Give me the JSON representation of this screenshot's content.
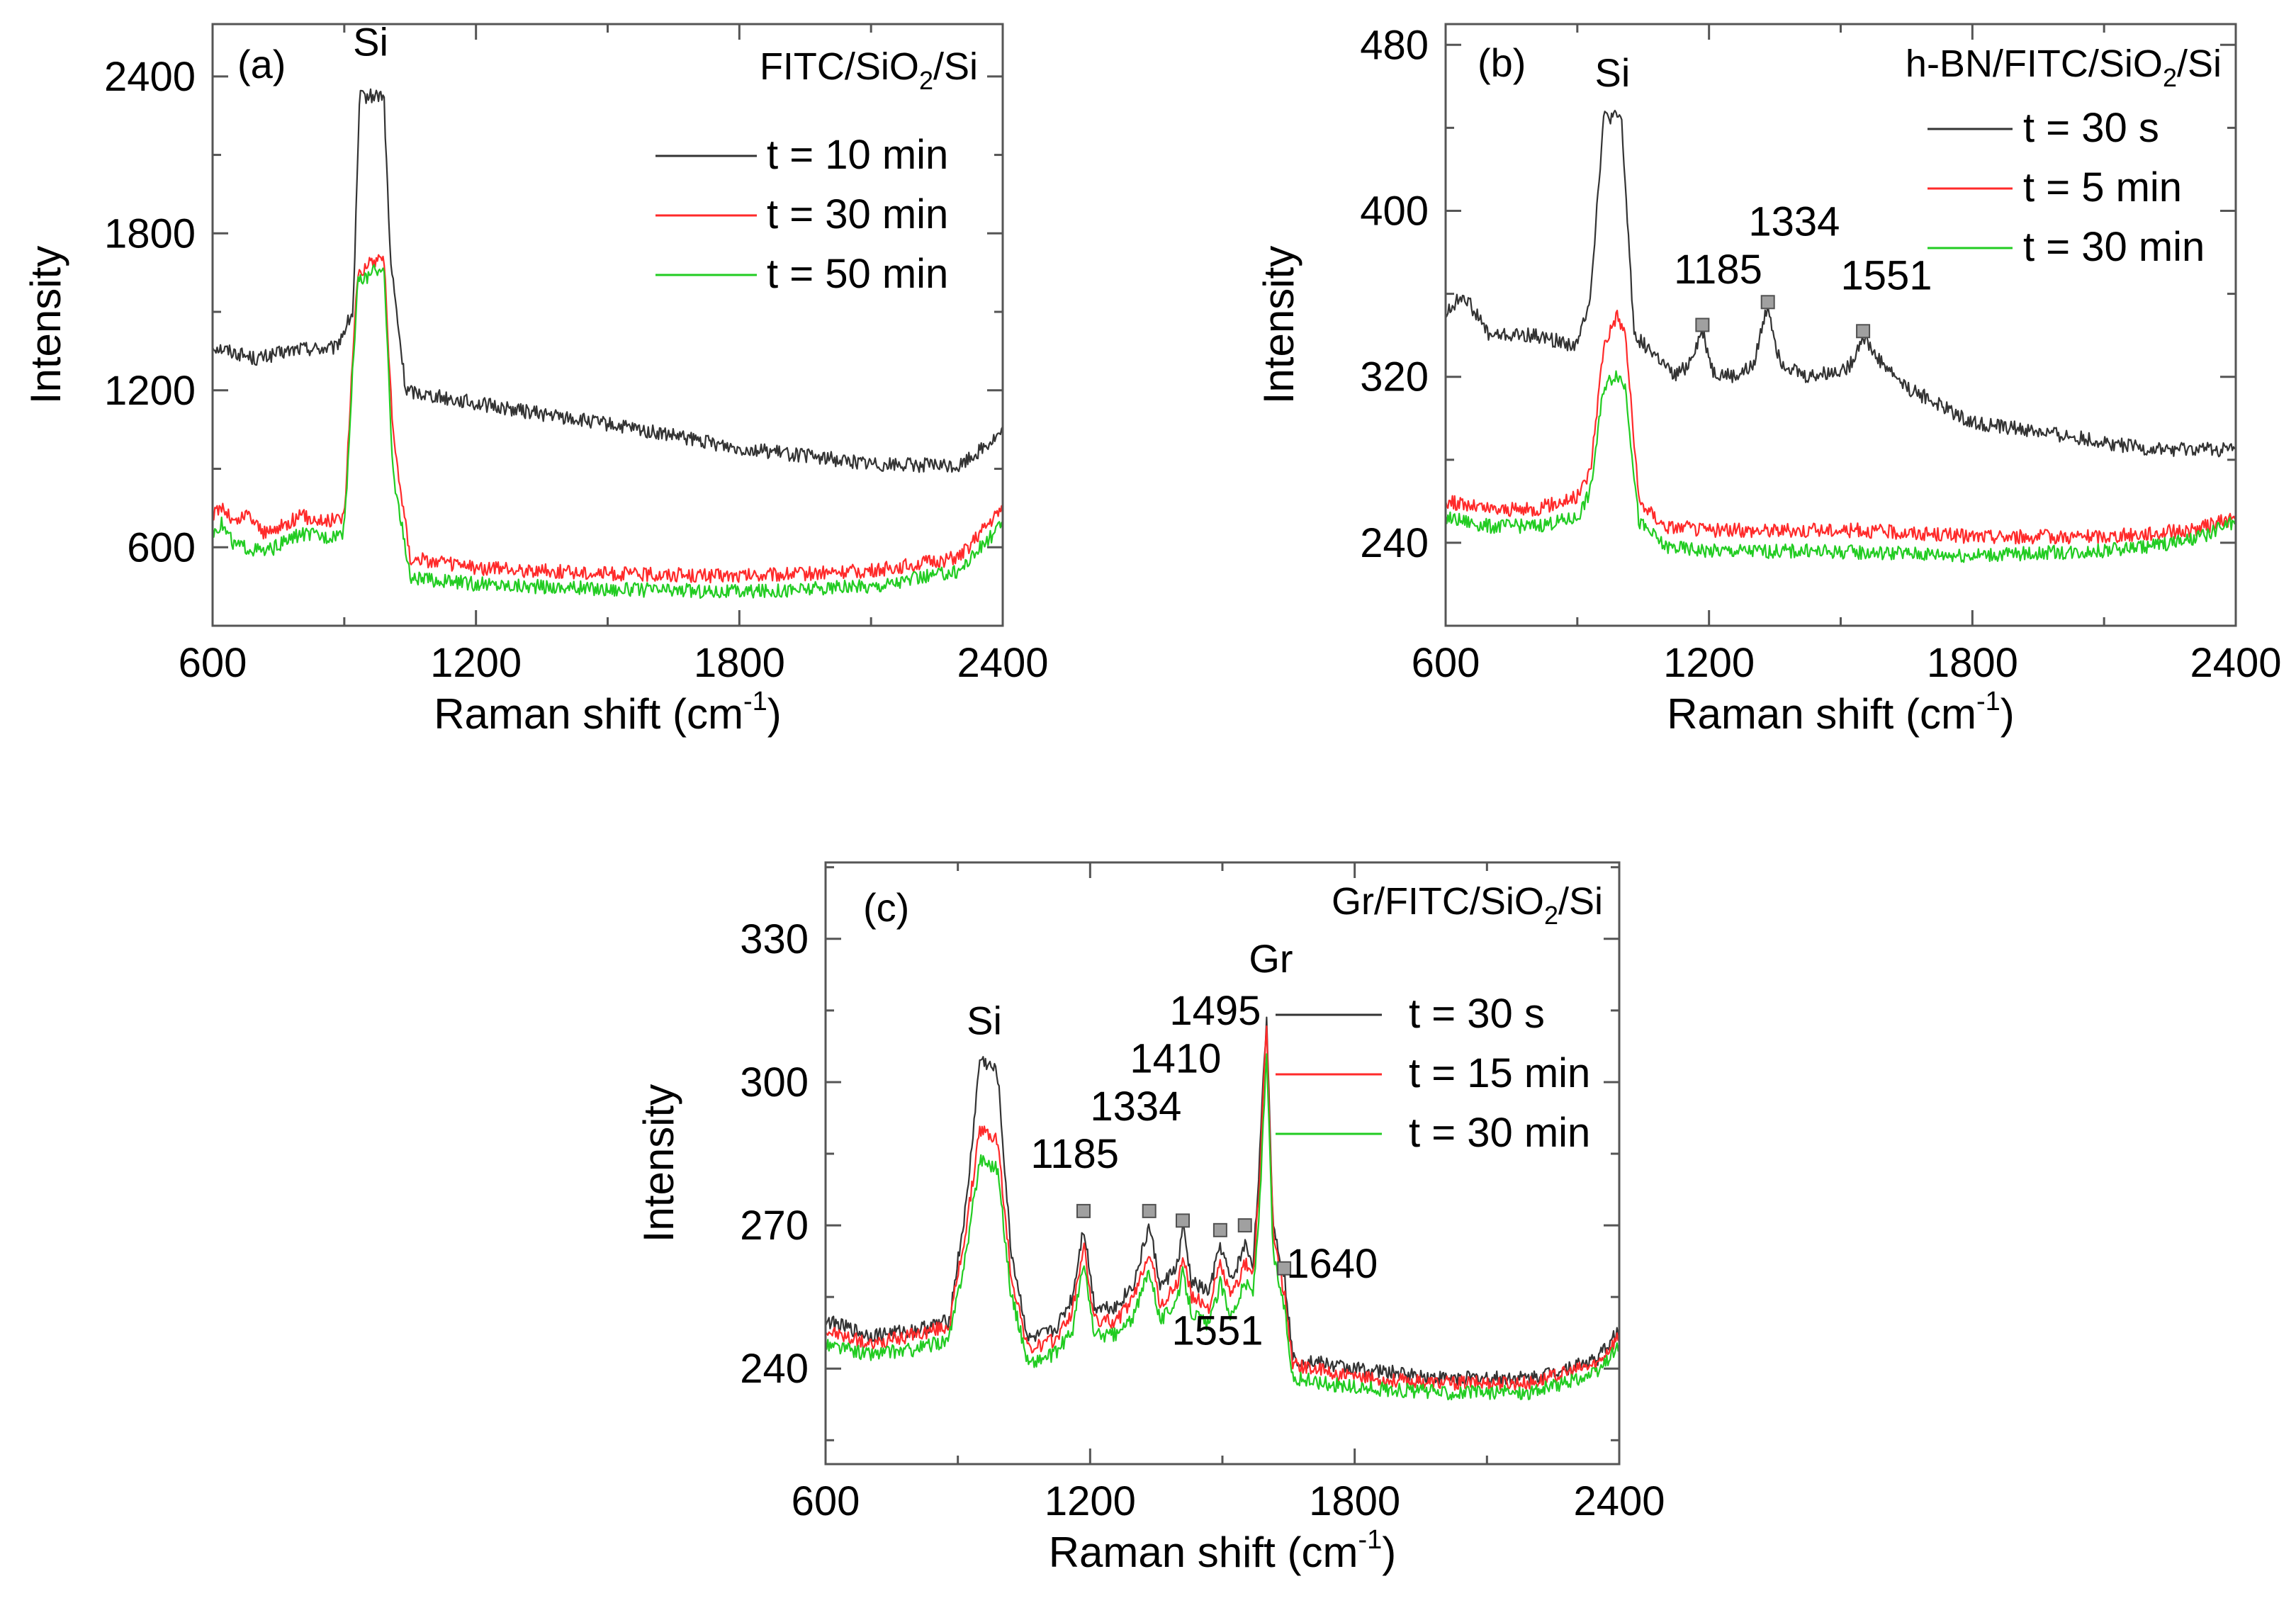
{
  "chart_data": [
    {
      "id": "a",
      "type": "line",
      "panel_label": "(a)",
      "sample": {
        "pre": "FITC/SiO",
        "sub": "2",
        "post": "/Si"
      },
      "xlabel": {
        "pre": "Raman shift (cm",
        "sup": "-1",
        "post": ")"
      },
      "ylabel": "Intensity",
      "xlim": [
        600,
        2400
      ],
      "ylim": [
        300,
        2600
      ],
      "xticks": [
        600,
        1200,
        1800,
        2400
      ],
      "yticks": [
        600,
        1200,
        1800,
        2400
      ],
      "annotations": [
        {
          "text": "Si",
          "x": 960,
          "y": 2480
        }
      ],
      "markers": [],
      "series": [
        {
          "name": "t = 10 min",
          "color": "#333333",
          "points": [
            [
              600,
              1370
            ],
            [
              700,
              1320
            ],
            [
              800,
              1360
            ],
            [
              880,
              1360
            ],
            [
              920,
              1500
            ],
            [
              935,
              2320
            ],
            [
              990,
              2330
            ],
            [
              1005,
              1700
            ],
            [
              1040,
              1200
            ],
            [
              1200,
              1150
            ],
            [
              1500,
              1070
            ],
            [
              1800,
              980
            ],
            [
              2100,
              920
            ],
            [
              2300,
              910
            ],
            [
              2400,
              1040
            ]
          ]
        },
        {
          "name": "t = 30 min",
          "color": "#ff2a2a",
          "points": [
            [
              600,
              720
            ],
            [
              620,
              760
            ],
            [
              650,
              690
            ],
            [
              680,
              730
            ],
            [
              720,
              650
            ],
            [
              800,
              720
            ],
            [
              860,
              700
            ],
            [
              900,
              720
            ],
            [
              930,
              1650
            ],
            [
              990,
              1720
            ],
            [
              1010,
              1050
            ],
            [
              1050,
              560
            ],
            [
              1200,
              520
            ],
            [
              1500,
              500
            ],
            [
              1800,
              490
            ],
            [
              2100,
              510
            ],
            [
              2300,
              560
            ],
            [
              2400,
              750
            ]
          ]
        },
        {
          "name": "t = 50 min",
          "color": "#22cc22",
          "points": [
            [
              600,
              660
            ],
            [
              620,
              690
            ],
            [
              650,
              610
            ],
            [
              720,
              580
            ],
            [
              800,
              650
            ],
            [
              860,
              640
            ],
            [
              900,
              660
            ],
            [
              930,
              1610
            ],
            [
              990,
              1680
            ],
            [
              1010,
              900
            ],
            [
              1050,
              480
            ],
            [
              1200,
              460
            ],
            [
              1500,
              440
            ],
            [
              1800,
              430
            ],
            [
              2100,
              450
            ],
            [
              2300,
              510
            ],
            [
              2400,
              690
            ]
          ]
        }
      ]
    },
    {
      "id": "b",
      "type": "line",
      "panel_label": "(b)",
      "sample": {
        "pre": "h-BN/FITC/SiO",
        "sub": "2",
        "post": "/Si"
      },
      "xlabel": {
        "pre": "Raman shift (cm",
        "sup": "-1",
        "post": ")"
      },
      "ylabel": "Intensity",
      "xlim": [
        600,
        2400
      ],
      "ylim": [
        200,
        490
      ],
      "xticks": [
        600,
        1200,
        1800,
        2400
      ],
      "yticks": [
        240,
        320,
        400,
        480
      ],
      "annotations": [
        {
          "text": "Si",
          "x": 980,
          "y": 460
        },
        {
          "text": "1185",
          "x": 1120,
          "y": 365
        },
        {
          "text": "1334",
          "x": 1290,
          "y": 388
        },
        {
          "text": "1551",
          "x": 1500,
          "y": 362
        }
      ],
      "markers": [
        [
          1185,
          345
        ],
        [
          1334,
          356
        ],
        [
          1551,
          342
        ]
      ],
      "series": [
        {
          "name": "t = 30 s",
          "color": "#333333",
          "points": [
            [
              600,
              350
            ],
            [
              640,
              360
            ],
            [
              700,
              340
            ],
            [
              800,
              340
            ],
            [
              900,
              335
            ],
            [
              930,
              360
            ],
            [
              960,
              445
            ],
            [
              1000,
              445
            ],
            [
              1030,
              340
            ],
            [
              1080,
              330
            ],
            [
              1120,
              320
            ],
            [
              1150,
              325
            ],
            [
              1185,
              342
            ],
            [
              1210,
              322
            ],
            [
              1260,
              320
            ],
            [
              1300,
              325
            ],
            [
              1334,
              355
            ],
            [
              1360,
              328
            ],
            [
              1420,
              320
            ],
            [
              1480,
              322
            ],
            [
              1520,
              325
            ],
            [
              1551,
              340
            ],
            [
              1580,
              330
            ],
            [
              1650,
              315
            ],
            [
              1800,
              298
            ],
            [
              2000,
              292
            ],
            [
              2200,
              285
            ],
            [
              2400,
              285
            ]
          ]
        },
        {
          "name": "t = 5 min",
          "color": "#ff2a2a",
          "points": [
            [
              600,
              260
            ],
            [
              700,
              256
            ],
            [
              800,
              256
            ],
            [
              900,
              262
            ],
            [
              930,
              275
            ],
            [
              960,
              335
            ],
            [
              990,
              350
            ],
            [
              1010,
              340
            ],
            [
              1040,
              260
            ],
            [
              1100,
              248
            ],
            [
              1200,
              246
            ],
            [
              1350,
              246
            ],
            [
              1551,
              246
            ],
            [
              1800,
              243
            ],
            [
              2100,
              243
            ],
            [
              2300,
              246
            ],
            [
              2400,
              252
            ]
          ]
        },
        {
          "name": "t = 30 min",
          "color": "#22cc22",
          "points": [
            [
              600,
              252
            ],
            [
              700,
              248
            ],
            [
              800,
              248
            ],
            [
              900,
              252
            ],
            [
              930,
              265
            ],
            [
              960,
              315
            ],
            [
              990,
              322
            ],
            [
              1010,
              315
            ],
            [
              1040,
              250
            ],
            [
              1100,
              238
            ],
            [
              1200,
              236
            ],
            [
              1400,
              236
            ],
            [
              1600,
              235
            ],
            [
              1800,
              234
            ],
            [
              2100,
              236
            ],
            [
              2300,
              241
            ],
            [
              2400,
              250
            ]
          ]
        }
      ]
    },
    {
      "id": "c",
      "type": "line",
      "panel_label": "(c)",
      "sample": {
        "pre": "Gr/FITC/SiO",
        "sub": "2",
        "post": "/Si"
      },
      "xlabel": {
        "pre": "Raman shift (cm",
        "sup": "-1",
        "post": ")"
      },
      "ylabel": "Intensity",
      "xlim": [
        600,
        2400
      ],
      "ylim": [
        220,
        346
      ],
      "xticks": [
        600,
        1200,
        1800,
        2400
      ],
      "yticks": [
        240,
        270,
        300,
        330
      ],
      "annotations": [
        {
          "text": "Si",
          "x": 960,
          "y": 310
        },
        {
          "text": "Gr",
          "x": 1610,
          "y": 323
        },
        {
          "text": "1185",
          "x": 1065,
          "y": 282
        },
        {
          "text": "1334",
          "x": 1200,
          "y": 292
        },
        {
          "text": "1410",
          "x": 1290,
          "y": 302
        },
        {
          "text": "1495",
          "x": 1380,
          "y": 312
        },
        {
          "text": "1551",
          "x": 1385,
          "y": 245
        },
        {
          "text": "1640",
          "x": 1645,
          "y": 259
        }
      ],
      "markers": [
        [
          1185,
          273
        ],
        [
          1334,
          273
        ],
        [
          1410,
          271
        ],
        [
          1495,
          269
        ],
        [
          1551,
          270
        ],
        [
          1640,
          261
        ]
      ],
      "series": [
        {
          "name": "t = 30 s",
          "color": "#333333",
          "points": [
            [
              600,
              250
            ],
            [
              700,
              247
            ],
            [
              800,
              248
            ],
            [
              880,
              250
            ],
            [
              920,
              275
            ],
            [
              950,
              305
            ],
            [
              990,
              302
            ],
            [
              1020,
              265
            ],
            [
              1060,
              246
            ],
            [
              1120,
              248
            ],
            [
              1160,
              255
            ],
            [
              1185,
              270
            ],
            [
              1210,
              253
            ],
            [
              1260,
              253
            ],
            [
              1300,
              258
            ],
            [
              1334,
              270
            ],
            [
              1360,
              257
            ],
            [
              1400,
              262
            ],
            [
              1410,
              270
            ],
            [
              1430,
              258
            ],
            [
              1470,
              256
            ],
            [
              1495,
              266
            ],
            [
              1520,
              258
            ],
            [
              1551,
              266
            ],
            [
              1570,
              262
            ],
            [
              1585,
              285
            ],
            [
              1600,
              314
            ],
            [
              1615,
              270
            ],
            [
              1640,
              260
            ],
            [
              1660,
              242
            ],
            [
              1800,
              240
            ],
            [
              2000,
              238
            ],
            [
              2200,
              238
            ],
            [
              2350,
              242
            ],
            [
              2400,
              248
            ]
          ]
        },
        {
          "name": "t = 15 min",
          "color": "#ff2a2a",
          "points": [
            [
              600,
              248
            ],
            [
              700,
              245
            ],
            [
              800,
              247
            ],
            [
              880,
              249
            ],
            [
              920,
              270
            ],
            [
              950,
              290
            ],
            [
              990,
              288
            ],
            [
              1020,
              260
            ],
            [
              1060,
              244
            ],
            [
              1120,
              246
            ],
            [
              1160,
              252
            ],
            [
              1185,
              266
            ],
            [
              1210,
              250
            ],
            [
              1260,
              250
            ],
            [
              1300,
              255
            ],
            [
              1334,
              265
            ],
            [
              1360,
              253
            ],
            [
              1400,
              258
            ],
            [
              1410,
              264
            ],
            [
              1430,
              255
            ],
            [
              1470,
              253
            ],
            [
              1495,
              262
            ],
            [
              1520,
              255
            ],
            [
              1551,
              262
            ],
            [
              1570,
              260
            ],
            [
              1585,
              280
            ],
            [
              1600,
              312
            ],
            [
              1615,
              268
            ],
            [
              1640,
              256
            ],
            [
              1660,
              241
            ],
            [
              1800,
              238
            ],
            [
              2000,
              237
            ],
            [
              2200,
              237
            ],
            [
              2350,
              241
            ],
            [
              2400,
              247
            ]
          ]
        },
        {
          "name": "t = 30 min",
          "color": "#22cc22",
          "points": [
            [
              600,
              245
            ],
            [
              700,
              243
            ],
            [
              800,
              244
            ],
            [
              880,
              246
            ],
            [
              920,
              265
            ],
            [
              950,
              284
            ],
            [
              990,
              282
            ],
            [
              1020,
              256
            ],
            [
              1060,
              241
            ],
            [
              1120,
              243
            ],
            [
              1160,
              248
            ],
            [
              1185,
              262
            ],
            [
              1210,
              247
            ],
            [
              1260,
              247
            ],
            [
              1300,
              251
            ],
            [
              1334,
              261
            ],
            [
              1360,
              250
            ],
            [
              1400,
              255
            ],
            [
              1410,
              260
            ],
            [
              1430,
              252
            ],
            [
              1470,
              249
            ],
            [
              1495,
              258
            ],
            [
              1520,
              251
            ],
            [
              1551,
              258
            ],
            [
              1570,
              256
            ],
            [
              1585,
              275
            ],
            [
              1600,
              306
            ],
            [
              1615,
              264
            ],
            [
              1640,
              253
            ],
            [
              1660,
              238
            ],
            [
              1800,
              236
            ],
            [
              2000,
              235
            ],
            [
              2200,
              235
            ],
            [
              2350,
              239
            ],
            [
              2400,
              245
            ]
          ]
        }
      ]
    }
  ]
}
